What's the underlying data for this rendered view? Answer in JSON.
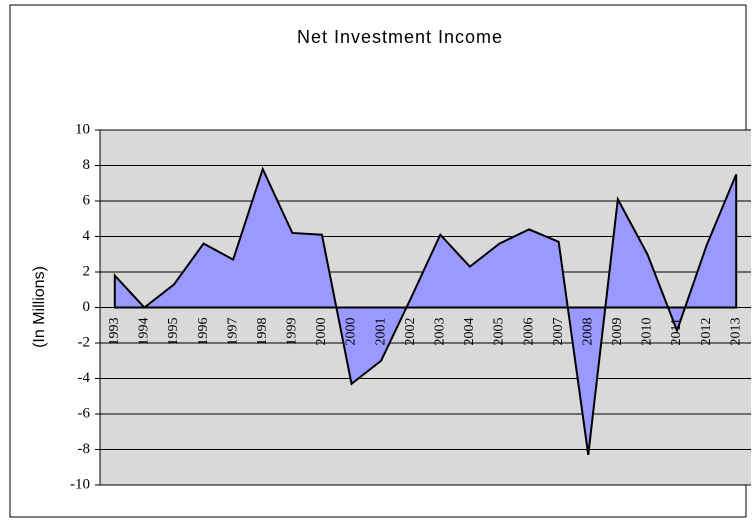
{
  "chart_data": {
    "type": "area",
    "title": "Net Investment Income",
    "y_label": "(In Millions)",
    "categories": [
      "1993",
      "1994",
      "1995",
      "1996",
      "1997",
      "1998",
      "1999",
      "2000",
      "2000",
      "2001",
      "2002",
      "2003",
      "2004",
      "2005",
      "2006",
      "2007",
      "2008",
      "2009",
      "2010",
      "2011",
      "2012",
      "2013"
    ],
    "values": [
      1.8,
      0,
      1.3,
      3.6,
      2.7,
      7.8,
      4.2,
      4.1,
      -4.3,
      -3.0,
      0.5,
      4.1,
      2.3,
      3.6,
      4.4,
      3.7,
      -8.3,
      6.1,
      3.0,
      -1.3,
      3.5,
      7.5
    ],
    "color": "#9999ff",
    "ylim": [
      -10,
      10
    ],
    "yticks": [
      -10,
      -8,
      -6,
      -4,
      -2,
      0,
      2,
      4,
      6,
      8,
      10
    ],
    "grid": true
  }
}
